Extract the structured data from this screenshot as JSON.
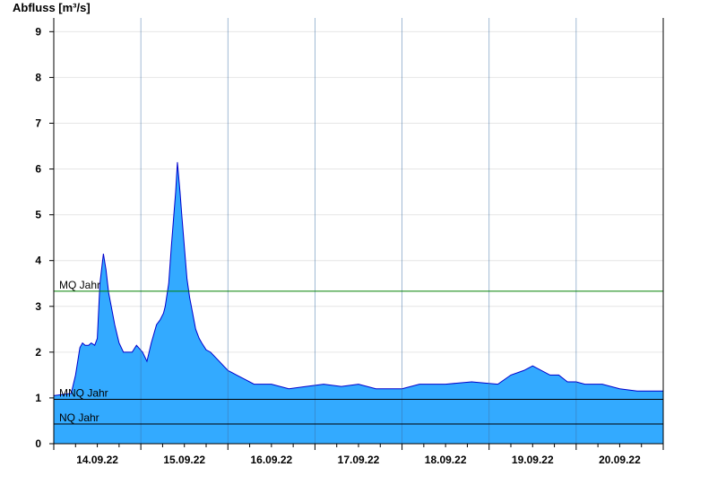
{
  "chart_data": {
    "type": "area",
    "ylabel": "Abfluss [m³/s]",
    "ylim": [
      0,
      9.3
    ],
    "yticks": [
      0,
      1,
      2,
      3,
      4,
      5,
      6,
      7,
      8,
      9
    ],
    "xlim_days": [
      13.5,
      20.5
    ],
    "xticks": [
      {
        "label": "14.09.22",
        "day": 14
      },
      {
        "label": "15.09.22",
        "day": 15
      },
      {
        "label": "16.09.22",
        "day": 16
      },
      {
        "label": "17.09.22",
        "day": 17
      },
      {
        "label": "18.09.22",
        "day": 18
      },
      {
        "label": "19.09.22",
        "day": 19
      },
      {
        "label": "20.09.22",
        "day": 20
      }
    ],
    "grid": true,
    "colors": {
      "fill": "#33aaff",
      "line": "#0000cc",
      "mq": "#008000",
      "ref": "#000000"
    },
    "reference_lines": [
      {
        "label": "MQ Jahr",
        "value": 3.33
      },
      {
        "label": "MNQ Jahr",
        "value": 0.97
      },
      {
        "label": "NQ Jahr",
        "value": 0.43
      }
    ],
    "series": [
      {
        "x_days": [
          13.5,
          13.7,
          13.75,
          13.8,
          13.83,
          13.86,
          13.9,
          13.93,
          13.97,
          14.0,
          14.03,
          14.07,
          14.1,
          14.13,
          14.17,
          14.2,
          14.25,
          14.3,
          14.4,
          14.45,
          14.52,
          14.57,
          14.62,
          14.68,
          14.72,
          14.76,
          14.78,
          14.82,
          14.85,
          14.9,
          14.92,
          14.95,
          14.97,
          15.0,
          15.03,
          15.06,
          15.1,
          15.13,
          15.17,
          15.2,
          15.25,
          15.3,
          15.35,
          15.4,
          15.45,
          15.5,
          15.55,
          15.6,
          15.7,
          15.8,
          15.9,
          16.0,
          16.2,
          16.4,
          16.6,
          16.8,
          17.0,
          17.2,
          17.5,
          17.7,
          18.0,
          18.3,
          18.6,
          18.75,
          18.9,
          19.0,
          19.2,
          19.3,
          19.4,
          19.5,
          19.6,
          19.8,
          20.0,
          20.2,
          20.5
        ],
        "y": [
          1.05,
          1.1,
          1.5,
          2.1,
          2.2,
          2.15,
          2.15,
          2.2,
          2.15,
          2.3,
          3.5,
          4.15,
          3.8,
          3.3,
          2.9,
          2.6,
          2.2,
          2.0,
          2.0,
          2.15,
          2.0,
          1.8,
          2.2,
          2.6,
          2.7,
          2.85,
          3.0,
          3.5,
          4.3,
          5.5,
          6.15,
          5.5,
          5.0,
          4.3,
          3.6,
          3.2,
          2.8,
          2.5,
          2.3,
          2.2,
          2.05,
          2.0,
          1.9,
          1.8,
          1.7,
          1.6,
          1.55,
          1.5,
          1.4,
          1.3,
          1.3,
          1.3,
          1.2,
          1.25,
          1.3,
          1.25,
          1.3,
          1.2,
          1.2,
          1.3,
          1.3,
          1.35,
          1.3,
          1.5,
          1.6,
          1.7,
          1.5,
          1.5,
          1.35,
          1.35,
          1.3,
          1.3,
          1.2,
          1.15,
          1.15
        ]
      }
    ]
  }
}
